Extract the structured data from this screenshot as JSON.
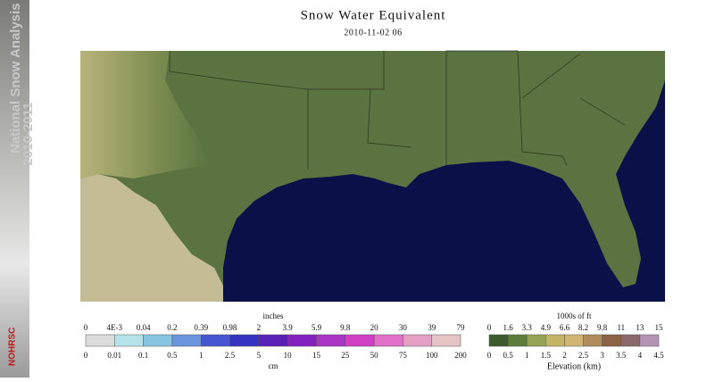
{
  "sidebar": {
    "title": "National Snow Analysis",
    "years": "2010-2011",
    "logo": "NOHRSC"
  },
  "header": {
    "title": "Snow Water Equivalent",
    "date": "2010-11-02 06"
  },
  "swe_legend": {
    "top_unit": "inches",
    "top_labels": [
      "0",
      "4E-3",
      "0.04",
      "0.2",
      "0.39",
      "0.98",
      "2",
      "3.9",
      "5.9",
      "9.8",
      "20",
      "30",
      "39",
      "79"
    ],
    "bottom_labels": [
      "0",
      "0.01",
      "0.1",
      "0.5",
      "1",
      "2.5",
      "5",
      "10",
      "15",
      "25",
      "50",
      "75",
      "100",
      "200"
    ],
    "bottom_unit": "cm",
    "colors": [
      "#dcdcdc",
      "#b4e4ea",
      "#86c4e0",
      "#6a94dc",
      "#4656d0",
      "#3434c0",
      "#5a22b4",
      "#8422c0",
      "#aa34c4",
      "#d040c4",
      "#e070c8",
      "#e4a0c4",
      "#e4c4c4"
    ]
  },
  "elevation_legend": {
    "top_unit": "1000s of ft",
    "top_labels": [
      "0",
      "1.6",
      "3.3",
      "4.9",
      "6.6",
      "8.2",
      "9.8",
      "11",
      "13",
      "15"
    ],
    "bottom_labels": [
      "0",
      "0.5",
      "1",
      "1.5",
      "2",
      "2.5",
      "3",
      "3.5",
      "4",
      "4.5"
    ],
    "bottom_unit": "Elevation (km)",
    "colors": [
      "#3c5a2c",
      "#5e7c3c",
      "#94a454",
      "#c4b468",
      "#d0b474",
      "#b08c5c",
      "#8c6444",
      "#8a6a6a",
      "#b494b4"
    ]
  }
}
